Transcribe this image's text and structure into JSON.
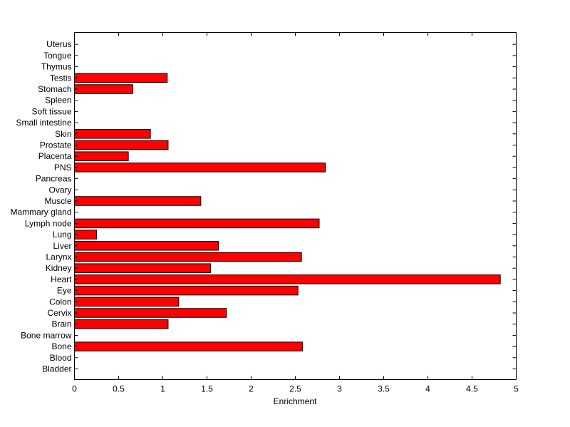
{
  "chart_data": {
    "type": "bar",
    "orientation": "horizontal",
    "xlabel": "Enrichment",
    "ylabel": "",
    "xlim": [
      0,
      5
    ],
    "xticks": [
      0,
      0.5,
      1,
      1.5,
      2,
      2.5,
      3,
      3.5,
      4,
      4.5,
      5
    ],
    "xtick_labels": [
      "0",
      "0.5",
      "1",
      "1.5",
      "2",
      "2.5",
      "3",
      "3.5",
      "4",
      "4.5",
      "5"
    ],
    "grid": false,
    "legend": "none",
    "bar_color": "#ff0000",
    "categories": [
      "Bladder",
      "Blood",
      "Bone",
      "Bone marrow",
      "Brain",
      "Cervix",
      "Colon",
      "Eye",
      "Heart",
      "Kidney",
      "Larynx",
      "Liver",
      "Lung",
      "Lymph node",
      "Mammary gland",
      "Muscle",
      "Ovary",
      "Pancreas",
      "PNS",
      "Placenta",
      "Prostate",
      "Skin",
      "Small intestine",
      "Soft tissue",
      "Spleen",
      "Stomach",
      "Testis",
      "Thymus",
      "Tongue",
      "Uterus"
    ],
    "values": [
      0,
      0,
      2.58,
      0,
      1.06,
      1.72,
      1.18,
      2.53,
      4.82,
      1.54,
      2.57,
      1.63,
      0.25,
      2.77,
      0,
      1.43,
      0,
      0,
      2.84,
      0.61,
      1.06,
      0.86,
      0,
      0,
      0,
      0.66,
      1.05,
      0,
      0,
      0
    ]
  }
}
